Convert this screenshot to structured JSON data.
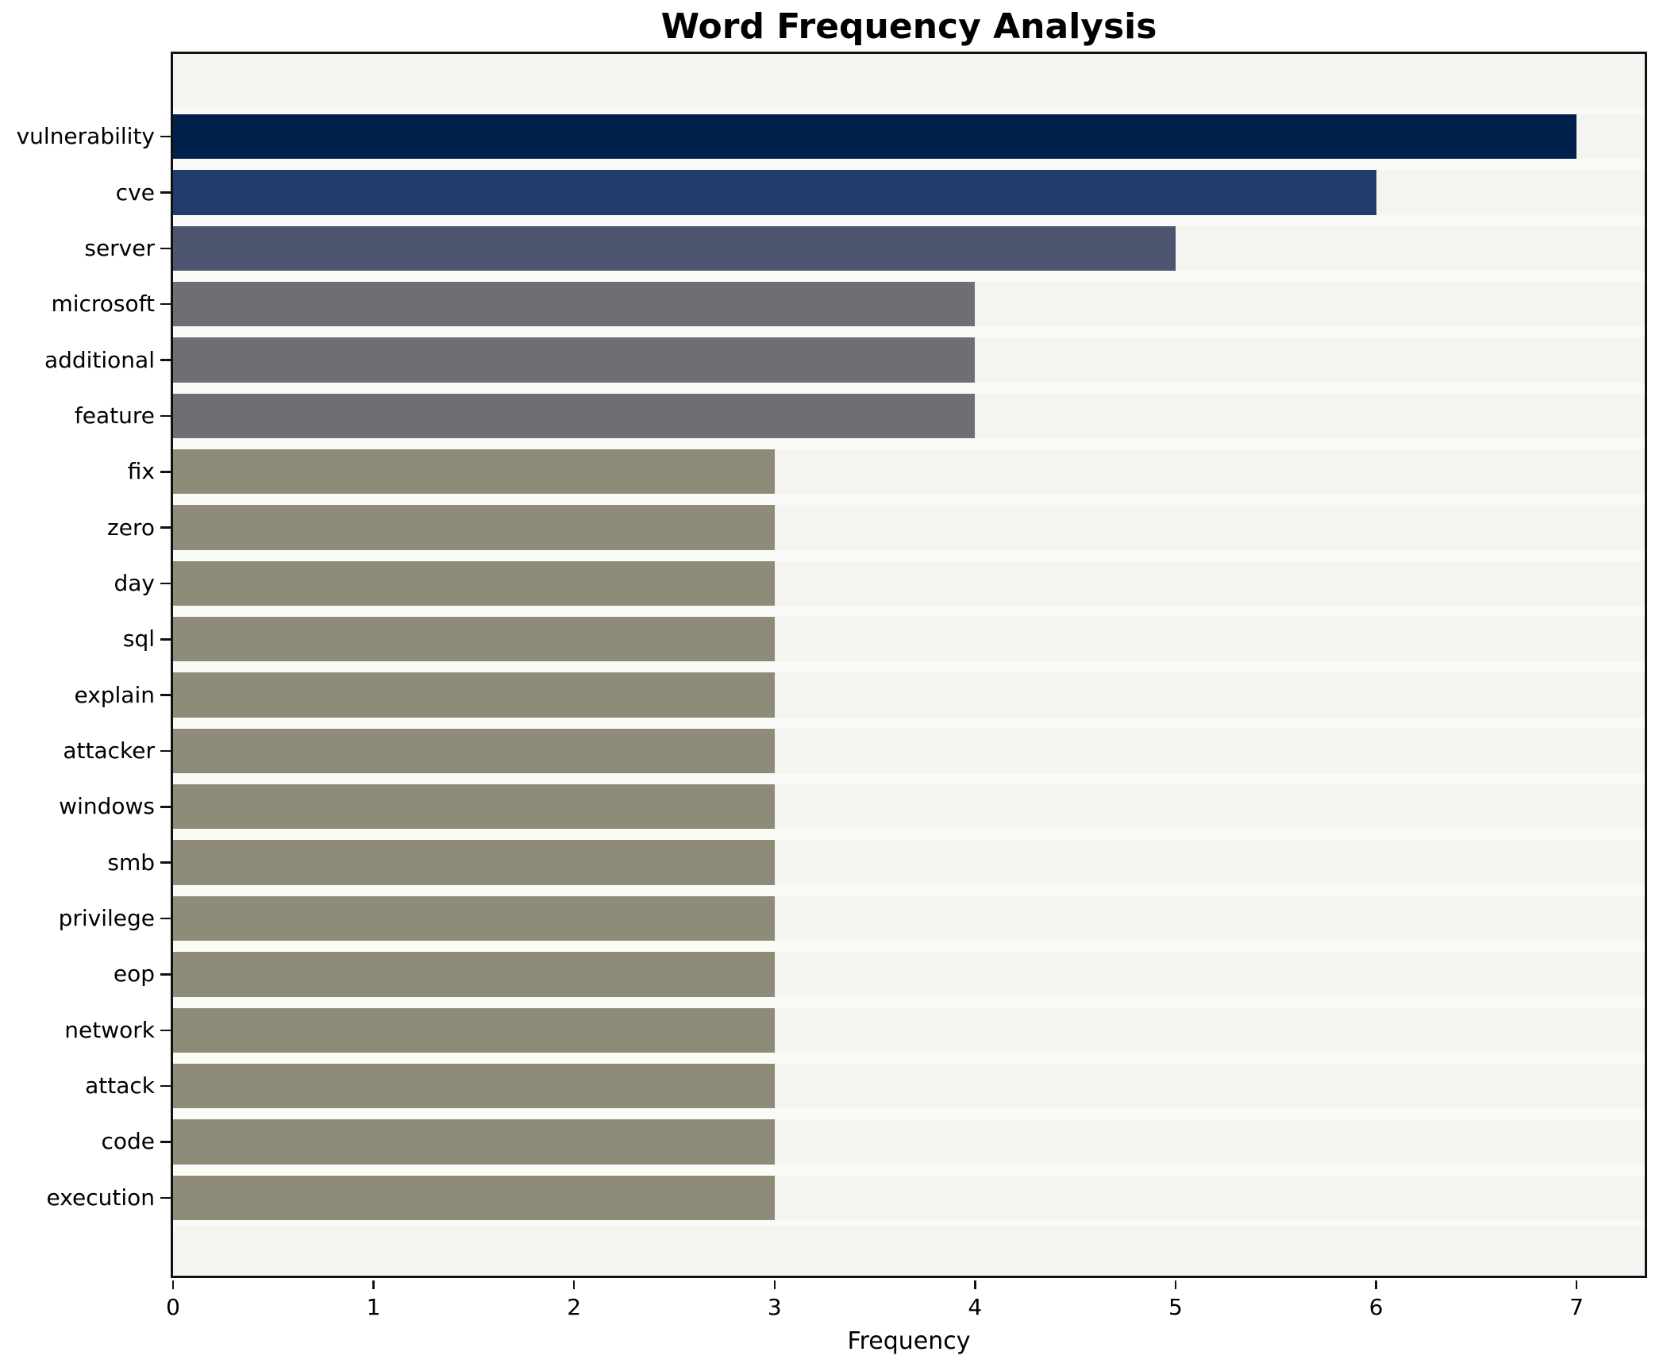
{
  "chart_data": {
    "type": "bar",
    "orientation": "horizontal",
    "title": "Word Frequency Analysis",
    "xlabel": "Frequency",
    "ylabel": "",
    "categories": [
      "vulnerability",
      "cve",
      "server",
      "microsoft",
      "additional",
      "feature",
      "fix",
      "zero",
      "day",
      "sql",
      "explain",
      "attacker",
      "windows",
      "smb",
      "privilege",
      "eop",
      "network",
      "attack",
      "code",
      "execution"
    ],
    "values": [
      7,
      6,
      5,
      4,
      4,
      4,
      3,
      3,
      3,
      3,
      3,
      3,
      3,
      3,
      3,
      3,
      3,
      3,
      3,
      3
    ],
    "bar_colors": [
      "#01214d",
      "#243c6b",
      "#4d5571",
      "#6d6f72",
      "#6d6f72",
      "#6d6f72",
      "#8f8b79",
      "#8f8b79",
      "#8f8b79",
      "#8f8b79",
      "#8f8b79",
      "#8f8b79",
      "#8f8b79",
      "#8f8b79",
      "#8f8b79",
      "#8f8b79",
      "#8f8b79",
      "#8f8b79",
      "#8f8b79",
      "#8f8b79"
    ],
    "x_ticks": [
      "0",
      "1",
      "2",
      "3",
      "4",
      "5",
      "6",
      "7"
    ],
    "xlim": [
      0,
      7.34
    ],
    "grid": false,
    "legend": false,
    "colors": {
      "value_7": "#01214d",
      "value_6": "#243c6b",
      "value_5": "#4d5571",
      "value_4": "#6d6f72",
      "value_3": "#8f8b79",
      "plot_background": "#f4f4f1",
      "row_gap": "#fafaf7",
      "axis": "#111111",
      "figure_background": "#ffffff"
    }
  }
}
